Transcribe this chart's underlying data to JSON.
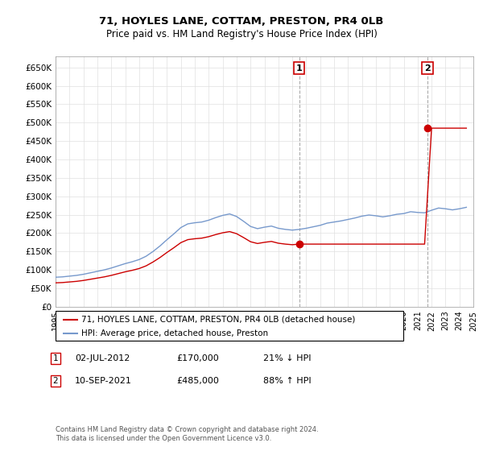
{
  "title": "71, HOYLES LANE, COTTAM, PRESTON, PR4 0LB",
  "subtitle": "Price paid vs. HM Land Registry's House Price Index (HPI)",
  "legend_line1": "71, HOYLES LANE, COTTAM, PRESTON, PR4 0LB (detached house)",
  "legend_line2": "HPI: Average price, detached house, Preston",
  "annotation1_label": "1",
  "annotation1_date": "02-JUL-2012",
  "annotation1_price": "£170,000",
  "annotation1_hpi": "21% ↓ HPI",
  "annotation2_label": "2",
  "annotation2_date": "10-SEP-2021",
  "annotation2_price": "£485,000",
  "annotation2_hpi": "88% ↑ HPI",
  "footnote": "Contains HM Land Registry data © Crown copyright and database right 2024.\nThis data is licensed under the Open Government Licence v3.0.",
  "hpi_color": "#7799cc",
  "property_color": "#cc0000",
  "annotation_box_color": "#cc0000",
  "ylim": [
    0,
    680000
  ],
  "yticks": [
    0,
    50000,
    100000,
    150000,
    200000,
    250000,
    300000,
    350000,
    400000,
    450000,
    500000,
    550000,
    600000,
    650000
  ],
  "ytick_labels": [
    "£0",
    "£50K",
    "£100K",
    "£150K",
    "£200K",
    "£250K",
    "£300K",
    "£350K",
    "£400K",
    "£450K",
    "£500K",
    "£550K",
    "£600K",
    "£650K"
  ],
  "sale1_year": 2012.5,
  "sale1_price": 170000,
  "sale2_year": 2021.7,
  "sale2_price": 485000,
  "xmin": 1995,
  "xmax": 2025,
  "hpi_years": [
    1995.0,
    1995.5,
    1996.0,
    1996.5,
    1997.0,
    1997.5,
    1998.0,
    1998.5,
    1999.0,
    1999.5,
    2000.0,
    2000.5,
    2001.0,
    2001.5,
    2002.0,
    2002.5,
    2003.0,
    2003.5,
    2004.0,
    2004.5,
    2005.0,
    2005.5,
    2006.0,
    2006.5,
    2007.0,
    2007.5,
    2008.0,
    2008.5,
    2009.0,
    2009.5,
    2010.0,
    2010.5,
    2011.0,
    2011.5,
    2012.0,
    2012.5,
    2013.0,
    2013.5,
    2014.0,
    2014.5,
    2015.0,
    2015.5,
    2016.0,
    2016.5,
    2017.0,
    2017.5,
    2018.0,
    2018.5,
    2019.0,
    2019.5,
    2020.0,
    2020.5,
    2021.0,
    2021.5,
    2022.0,
    2022.5,
    2023.0,
    2023.5,
    2024.0,
    2024.5
  ],
  "hpi_values": [
    80000,
    81000,
    83000,
    85000,
    88000,
    92000,
    96000,
    100000,
    105000,
    111000,
    117000,
    122000,
    128000,
    137000,
    150000,
    165000,
    182000,
    198000,
    215000,
    225000,
    228000,
    230000,
    235000,
    242000,
    248000,
    252000,
    245000,
    232000,
    218000,
    212000,
    216000,
    219000,
    213000,
    210000,
    208000,
    210000,
    213000,
    217000,
    221000,
    227000,
    230000,
    233000,
    237000,
    241000,
    246000,
    249000,
    247000,
    244000,
    247000,
    251000,
    253000,
    258000,
    256000,
    255000,
    262000,
    268000,
    266000,
    263000,
    266000,
    270000
  ]
}
